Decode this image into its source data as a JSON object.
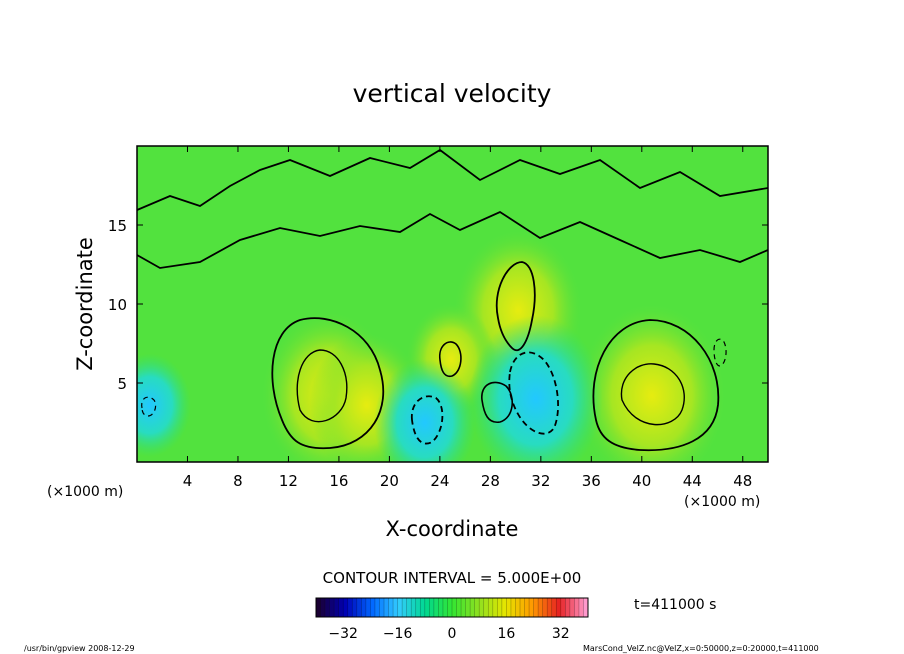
{
  "chart_data": {
    "type": "heatmap",
    "title": "vertical velocity",
    "xlabel": "X-coordinate",
    "ylabel": "Z-coordinate",
    "x_unit_left": "(×1000 m)",
    "x_unit_right": "(×1000 m)",
    "xlim": [
      0,
      50
    ],
    "ylim": [
      0,
      20
    ],
    "x_ticks": [
      4,
      8,
      12,
      16,
      20,
      24,
      28,
      32,
      36,
      40,
      44,
      48
    ],
    "y_ticks": [
      5,
      10,
      15
    ],
    "contour_interval_label": "CONTOUR INTERVAL = 5.000E+00",
    "time_label": "t=411000 s",
    "colorbar": {
      "range": [
        -40,
        40
      ],
      "ticks": [
        -32,
        -16,
        0,
        16,
        32
      ],
      "colors": [
        "#1a0033",
        "#0000b4",
        "#0066ff",
        "#33ccff",
        "#00d890",
        "#33e633",
        "#8fe020",
        "#e6e600",
        "#ff9900",
        "#e62222",
        "#ff99cc"
      ]
    },
    "features": [
      {
        "kind": "updraft",
        "x": 15.2,
        "z": 4.2,
        "peak": 14
      },
      {
        "kind": "updraft",
        "x": 18.2,
        "z": 3.6,
        "peak": 11
      },
      {
        "kind": "updraft",
        "x": 40.8,
        "z": 4.2,
        "peak": 16
      },
      {
        "kind": "updraft",
        "x": 30.2,
        "z": 9.6,
        "peak": 13
      },
      {
        "kind": "updraft",
        "x": 24.9,
        "z": 6.5,
        "peak": 7
      },
      {
        "kind": "downdraft",
        "x": 31.6,
        "z": 4.0,
        "peak": -14
      },
      {
        "kind": "downdraft",
        "x": 22.8,
        "z": 2.5,
        "peak": -9
      },
      {
        "kind": "downdraft",
        "x": 1.0,
        "z": 3.6,
        "peak": -6
      }
    ],
    "footer_left": "/usr/bin/gpview   2008-12-29",
    "footer_right": "MarsCond_VelZ.nc@VelZ,x=0:50000,z=0:20000,t=411000"
  }
}
